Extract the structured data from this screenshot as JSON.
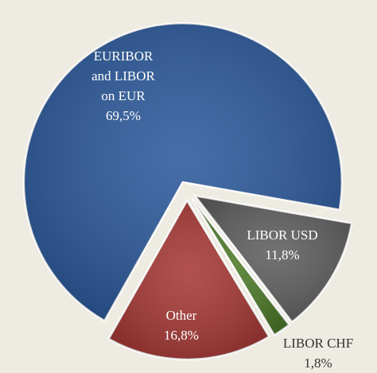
{
  "chart_data": {
    "type": "pie",
    "categories": [
      "EURIBOR and LIBOR on EUR",
      "LIBOR USD",
      "LIBOR CHF",
      "Other"
    ],
    "values": [
      69.5,
      11.8,
      1.8,
      16.8
    ],
    "value_labels": [
      "69,5%",
      "11,8%",
      "1,8%",
      "16,8%"
    ],
    "colors": [
      "#2d5a9b",
      "#5f5f5f",
      "#4e7a29",
      "#a63a37"
    ]
  }
}
